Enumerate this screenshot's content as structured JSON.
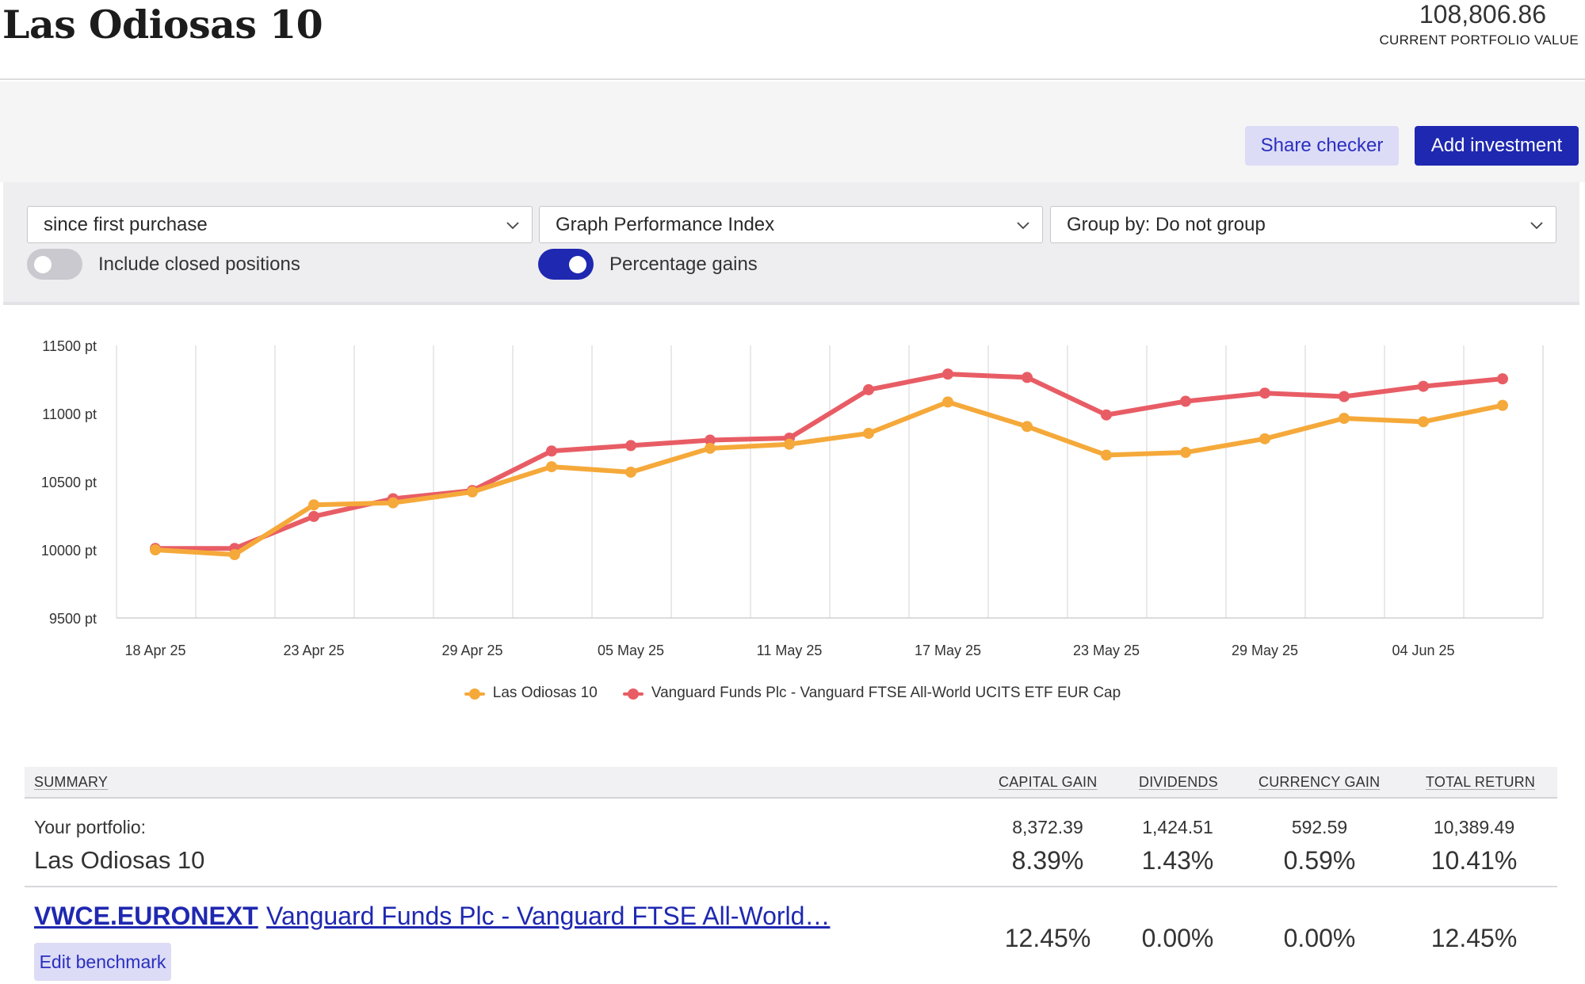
{
  "header": {
    "title": "Las Odiosas 10",
    "portfolio_value": "108,806.86",
    "portfolio_value_label": "CURRENT PORTFOLIO VALUE"
  },
  "actions": {
    "share_checker": "Share checker",
    "add_investment": "Add investment"
  },
  "filters": {
    "period": "since first purchase",
    "graph_type": "Graph Performance Index",
    "group_by": "Group by: Do not group",
    "include_closed_label": "Include closed positions",
    "include_closed_on": false,
    "percentage_gains_label": "Percentage gains",
    "percentage_gains_on": true
  },
  "chart_data": {
    "type": "line",
    "title": "",
    "xlabel": "",
    "ylabel": "",
    "y_ticks": [
      "11500 pt",
      "11000 pt",
      "10500 pt",
      "10000 pt",
      "9500 pt"
    ],
    "ylim": [
      9500,
      11500
    ],
    "x_ticks": [
      "18 Apr 25",
      "23 Apr 25",
      "29 Apr 25",
      "05 May 25",
      "11 May 25",
      "17 May 25",
      "23 May 25",
      "29 May 25",
      "04 Jun 25"
    ],
    "grid": "vertical",
    "legend_position": "bottom",
    "series": [
      {
        "name": "Las Odiosas 10",
        "color": "#f5a93a",
        "values": [
          10000,
          9965,
          10330,
          10345,
          10425,
          10610,
          10570,
          10745,
          10775,
          10855,
          11085,
          10905,
          10695,
          10715,
          10815,
          10965,
          10940,
          11060
        ]
      },
      {
        "name": "Vanguard Funds Plc - Vanguard FTSE All-World UCITS ETF EUR Cap",
        "color": "#e85d65",
        "values": [
          10010,
          10010,
          10245,
          10375,
          10435,
          10725,
          10765,
          10805,
          10820,
          11175,
          11290,
          11265,
          10990,
          11090,
          11150,
          11125,
          11200,
          11255
        ]
      }
    ]
  },
  "summary": {
    "headers": {
      "summary": "SUMMARY",
      "capital_gain": "CAPITAL GAIN",
      "dividends": "DIVIDENDS",
      "currency_gain": "CURRENCY GAIN",
      "total_return": "TOTAL RETURN"
    },
    "portfolio": {
      "label": "Your portfolio:",
      "name": "Las Odiosas 10",
      "capital_gain_value": "8,372.39",
      "dividends_value": "1,424.51",
      "currency_gain_value": "592.59",
      "total_return_value": "10,389.49",
      "capital_gain_pct": "8.39%",
      "dividends_pct": "1.43%",
      "currency_gain_pct": "0.59%",
      "total_return_pct": "10.41%"
    },
    "benchmark": {
      "ticker": "VWCE.EURONEXT",
      "name": "Vanguard Funds Plc - Vanguard FTSE All-World…",
      "capital_gain_pct": "12.45%",
      "dividends_pct": "0.00%",
      "currency_gain_pct": "0.00%",
      "total_return_pct": "12.45%",
      "edit_label": "Edit benchmark"
    }
  }
}
